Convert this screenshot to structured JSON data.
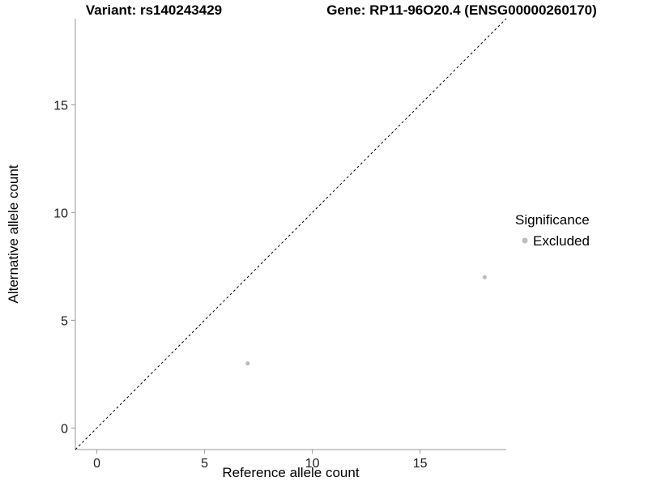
{
  "chart_data": {
    "type": "scatter",
    "title_left": "Variant: rs140243429",
    "title_right": "Gene: RP11-96O20.4 (ENSG00000260170)",
    "xlabel": "Reference allele count",
    "ylabel": "Alternative allele count",
    "xlim": [
      -1,
      19
    ],
    "ylim": [
      -1,
      19
    ],
    "xticks": [
      0,
      5,
      10,
      15
    ],
    "yticks": [
      0,
      5,
      10,
      15
    ],
    "grid": false,
    "series": [
      {
        "name": "Excluded",
        "color": "#bdbdbd",
        "points": [
          {
            "x": 7,
            "y": 3
          },
          {
            "x": 18,
            "y": 7
          }
        ]
      }
    ],
    "reference_line": {
      "type": "identity",
      "from": [
        -1,
        -1
      ],
      "to": [
        19,
        19
      ],
      "style": "dashed",
      "color": "#000000"
    },
    "legend": {
      "title": "Significance",
      "position": "right",
      "entries": [
        {
          "label": "Excluded",
          "color": "#bdbdbd"
        }
      ]
    },
    "axis_color": "#999999"
  }
}
